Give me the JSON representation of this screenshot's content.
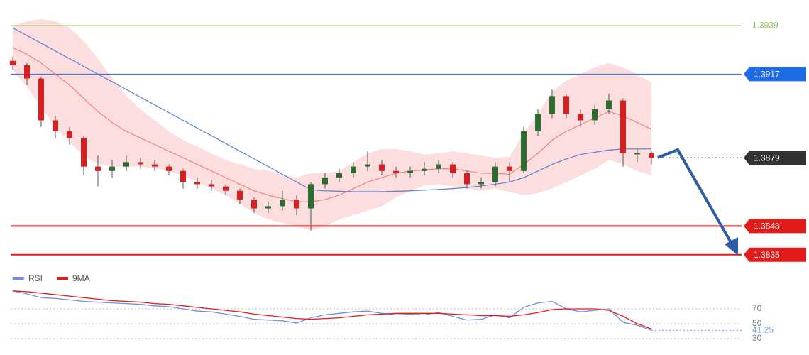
{
  "chart_data": [
    {
      "type": "candlestick",
      "ylim": [
        1.3832,
        1.395
      ],
      "open": [
        1.3923,
        1.3921,
        1.3915,
        1.3896,
        1.3891,
        1.3888,
        1.3875,
        1.3873,
        1.3875,
        1.3877,
        1.3876,
        1.3875,
        1.3873,
        1.3868,
        1.3867,
        1.3866,
        1.3864,
        1.386,
        1.3856,
        1.3857,
        1.386,
        1.3856,
        1.3867,
        1.387,
        1.3872,
        1.3875,
        1.3876,
        1.3873,
        1.3872,
        1.3873,
        1.3874,
        1.3876,
        1.3872,
        1.3867,
        1.3868,
        1.3875,
        1.3873,
        1.3891,
        1.3899,
        1.3907,
        1.3899,
        1.3896,
        1.3901,
        1.3905,
        1.3881,
        1.3881
      ],
      "high": [
        1.3925,
        1.3922,
        1.3916,
        1.3898,
        1.3893,
        1.3889,
        1.388,
        1.3878,
        1.388,
        1.3879,
        1.3878,
        1.3876,
        1.3874,
        1.387,
        1.3869,
        1.3867,
        1.3865,
        1.3861,
        1.3859,
        1.3864,
        1.3862,
        1.3868,
        1.3872,
        1.3874,
        1.3877,
        1.3882,
        1.3878,
        1.3875,
        1.3875,
        1.3877,
        1.3878,
        1.3877,
        1.3873,
        1.387,
        1.3877,
        1.3877,
        1.3893,
        1.3901,
        1.391,
        1.3908,
        1.3901,
        1.3903,
        1.3908,
        1.3906,
        1.3883,
        1.3882
      ],
      "low": [
        1.3919,
        1.3912,
        1.3893,
        1.3888,
        1.3885,
        1.3871,
        1.3866,
        1.387,
        1.3873,
        1.3874,
        1.3873,
        1.3871,
        1.3865,
        1.3865,
        1.3864,
        1.3862,
        1.3858,
        1.3854,
        1.3854,
        1.3855,
        1.3853,
        1.3846,
        1.3865,
        1.3868,
        1.387,
        1.3873,
        1.3871,
        1.387,
        1.387,
        1.3871,
        1.3872,
        1.387,
        1.3865,
        1.3865,
        1.3866,
        1.3868,
        1.3872,
        1.3889,
        1.3897,
        1.3897,
        1.3893,
        1.3894,
        1.3899,
        1.3875,
        1.3877,
        1.3876
      ],
      "close": [
        1.3921,
        1.3915,
        1.3896,
        1.3891,
        1.3888,
        1.3875,
        1.3873,
        1.3875,
        1.3877,
        1.3876,
        1.3875,
        1.3873,
        1.3868,
        1.3867,
        1.3866,
        1.3864,
        1.386,
        1.3856,
        1.3857,
        1.386,
        1.3856,
        1.3867,
        1.387,
        1.3872,
        1.3875,
        1.3876,
        1.3873,
        1.3872,
        1.3873,
        1.3874,
        1.3876,
        1.3872,
        1.3867,
        1.3868,
        1.3875,
        1.3873,
        1.3891,
        1.3899,
        1.3907,
        1.3899,
        1.3896,
        1.3901,
        1.3905,
        1.3881,
        1.3881,
        1.3879
      ],
      "up_color": "#2e6b30",
      "down_color": "#d42020",
      "band_color": "#fbd3d3",
      "band_upper": [
        1.3939,
        1.3941,
        1.3942,
        1.3941,
        1.3938,
        1.3932,
        1.3924,
        1.3915,
        1.3907,
        1.3901,
        1.3896,
        1.3891,
        1.3887,
        1.3884,
        1.3881,
        1.3878,
        1.3876,
        1.3874,
        1.3873,
        1.38715,
        1.387,
        1.3872,
        1.3872,
        1.3873,
        1.3877,
        1.3881,
        1.3883,
        1.3883,
        1.3882,
        1.38805,
        1.3881,
        1.3882,
        1.3881,
        1.388,
        1.3879,
        1.38795,
        1.389,
        1.3899,
        1.3909,
        1.3914,
        1.3917,
        1.392,
        1.3922,
        1.392,
        1.3917,
        1.3913
      ],
      "band_lower": [
        1.3919,
        1.3911,
        1.3902,
        1.3893,
        1.3886,
        1.388,
        1.3876,
        1.3875,
        1.3875,
        1.3875,
        1.3874,
        1.3873,
        1.3871,
        1.3868,
        1.3865,
        1.3862,
        1.3858,
        1.3854,
        1.3851,
        1.38495,
        1.3848,
        1.3846,
        1.3848,
        1.3851,
        1.3853,
        1.3855,
        1.3857,
        1.3861,
        1.3864,
        1.38665,
        1.3867,
        1.3866,
        1.3865,
        1.3864,
        1.3865,
        1.38635,
        1.3862,
        1.3863,
        1.3865,
        1.3868,
        1.3871,
        1.3874,
        1.3878,
        1.3876,
        1.3873,
        1.3871
      ],
      "ma_fast": {
        "color": "#f08080",
        "values": [
          1.3929,
          1.3926,
          1.3922,
          1.3917,
          1.3912,
          1.3906,
          1.39,
          1.3895,
          1.3891,
          1.3888,
          1.3885,
          1.3882,
          1.3879,
          1.3876,
          1.3873,
          1.387,
          1.3867,
          1.3864,
          1.3862,
          1.38605,
          1.3859,
          1.3859,
          1.386,
          1.3862,
          1.3865,
          1.3868,
          1.387,
          1.3872,
          1.3873,
          1.38735,
          1.3874,
          1.3874,
          1.3873,
          1.3872,
          1.3872,
          1.38715,
          1.3876,
          1.3881,
          1.3887,
          1.3891,
          1.3894,
          1.3897,
          1.39,
          1.3898,
          1.3895,
          1.3892
        ]
      },
      "ma_slow": {
        "color": "#5a7fd6",
        "values": [
          1.3938,
          1.39345,
          1.3931,
          1.39275,
          1.3924,
          1.39205,
          1.3917,
          1.39135,
          1.391,
          1.39065,
          1.3903,
          1.38995,
          1.3896,
          1.38925,
          1.3889,
          1.38855,
          1.3882,
          1.38785,
          1.3875,
          1.38715,
          1.3868,
          1.38645,
          1.3864,
          1.38638,
          1.38636,
          1.38636,
          1.38636,
          1.38638,
          1.3864,
          1.38643,
          1.38646,
          1.3865,
          1.38655,
          1.38662,
          1.3867,
          1.3868,
          1.387,
          1.3873,
          1.3876,
          1.38785,
          1.38805,
          1.38815,
          1.38825,
          1.3883,
          1.3883,
          1.3883
        ]
      },
      "levels": [
        {
          "value": 1.3939,
          "color": "#8bc34a"
        },
        {
          "value": 1.3917,
          "color": "#1e6be6"
        },
        {
          "value": 1.3879,
          "color": "#333333",
          "dotted": true
        },
        {
          "value": 1.3848,
          "color": "#e21b1b"
        },
        {
          "value": 1.3835,
          "color": "#e21b1b"
        }
      ]
    },
    {
      "type": "line",
      "ylim": [
        25,
        95
      ],
      "yticks": [
        30,
        50,
        70
      ],
      "grid": true,
      "legend": "top-left",
      "series": [
        {
          "name": "RSI",
          "color": "#6f8fe0",
          "values": [
            94,
            90,
            85,
            84,
            82,
            80,
            79,
            78,
            77,
            76,
            74,
            73,
            70,
            67,
            66,
            63,
            60,
            56,
            55,
            54,
            51,
            58,
            62,
            64,
            66,
            67,
            64,
            62,
            63,
            62,
            65,
            60,
            55,
            56,
            62,
            58,
            72,
            78,
            80,
            70,
            66,
            68,
            70,
            52,
            48,
            41.25
          ]
        },
        {
          "name": "9MA",
          "color": "#e21b1b",
          "values": [
            94,
            93,
            91,
            89,
            87,
            85,
            83,
            81,
            80,
            79,
            77,
            76,
            74,
            72,
            70,
            68,
            66,
            63,
            61,
            59,
            57,
            56,
            57,
            58,
            60,
            62,
            63,
            64,
            64,
            64,
            64,
            63,
            62,
            61,
            61,
            60,
            62,
            65,
            69,
            70,
            70,
            70,
            68,
            60,
            50,
            43
          ]
        }
      ]
    }
  ]
}
